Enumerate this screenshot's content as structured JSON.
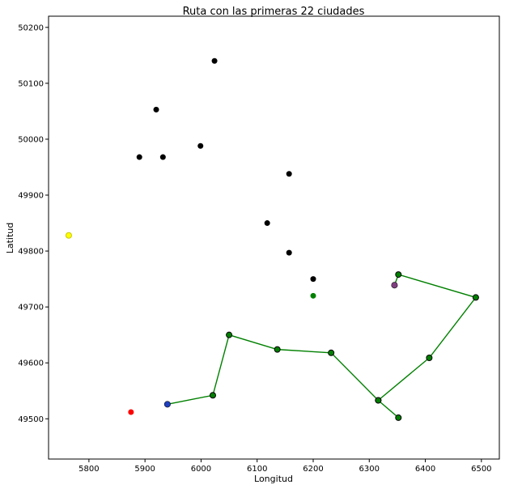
{
  "chart_data": {
    "type": "scatter",
    "title": "Ruta con las primeras 22 ciudades",
    "xlabel": "Longitud",
    "ylabel": "Latitud",
    "xlim": [
      5728,
      6532
    ],
    "ylim": [
      49428,
      50220
    ],
    "xticks": [
      5800,
      5900,
      6000,
      6100,
      6200,
      6300,
      6400,
      6500
    ],
    "yticks": [
      49500,
      49600,
      49700,
      49800,
      49900,
      50000,
      50100,
      50200
    ],
    "grid": false,
    "colors": {
      "city": "#000000",
      "route": "#008000",
      "start": "#1f3fbf",
      "current": "#7f3f7f",
      "next": "#008000",
      "highlight_red": "#ff0000",
      "highlight_yellow": "#ffff00"
    },
    "cities": [
      {
        "x": 6024,
        "y": 50140
      },
      {
        "x": 5920,
        "y": 50053
      },
      {
        "x": 5890,
        "y": 49968
      },
      {
        "x": 5932,
        "y": 49968
      },
      {
        "x": 5999,
        "y": 49988
      },
      {
        "x": 6157,
        "y": 49938
      },
      {
        "x": 6118,
        "y": 49850
      },
      {
        "x": 6157,
        "y": 49797
      },
      {
        "x": 6200,
        "y": 49750
      }
    ],
    "route": [
      {
        "x": 5940,
        "y": 49526
      },
      {
        "x": 6021,
        "y": 49542
      },
      {
        "x": 6050,
        "y": 49650
      },
      {
        "x": 6136,
        "y": 49624
      },
      {
        "x": 6232,
        "y": 49618
      },
      {
        "x": 6316,
        "y": 49533
      },
      {
        "x": 6352,
        "y": 49502
      },
      {
        "x": 6316,
        "y": 49533
      },
      {
        "x": 6407,
        "y": 49609
      },
      {
        "x": 6490,
        "y": 49717
      },
      {
        "x": 6352,
        "y": 49758
      },
      {
        "x": 6345,
        "y": 49739
      }
    ],
    "special_points": [
      {
        "name": "start",
        "x": 5940,
        "y": 49526,
        "color": "#1f3fbf"
      },
      {
        "name": "current",
        "x": 6345,
        "y": 49739,
        "color": "#7f3f7f"
      },
      {
        "name": "next",
        "x": 6200,
        "y": 49720,
        "color": "#008000"
      },
      {
        "name": "red",
        "x": 5875,
        "y": 49512,
        "color": "#ff0000"
      },
      {
        "name": "yellow",
        "x": 5764,
        "y": 49828,
        "color": "#ffff00"
      }
    ]
  }
}
